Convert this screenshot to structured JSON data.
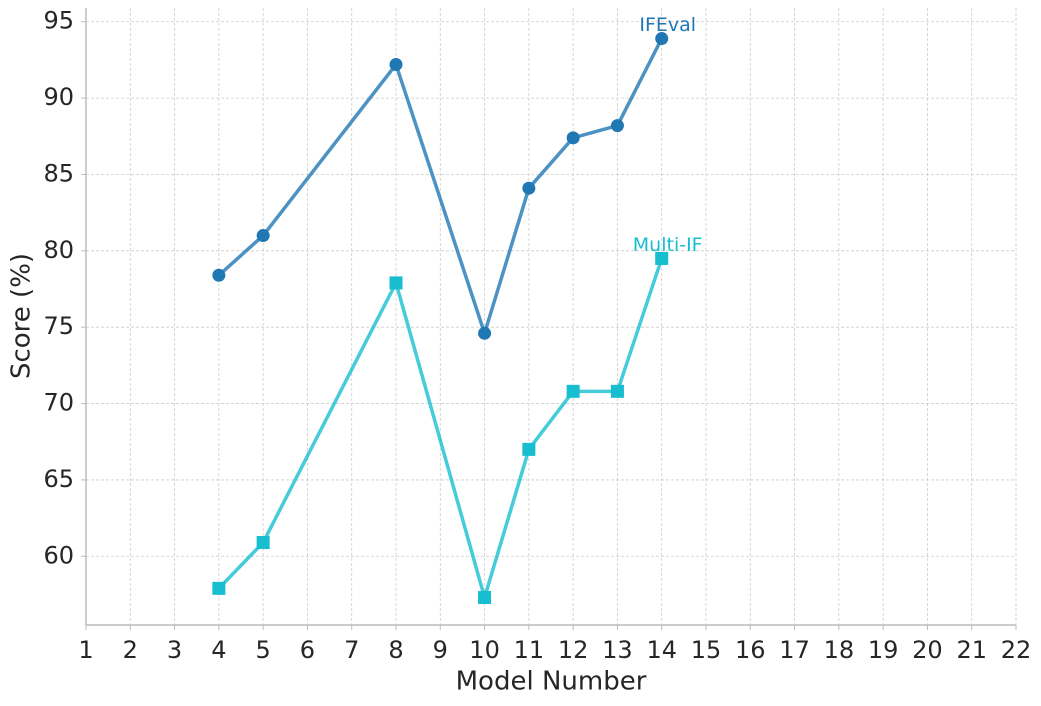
{
  "chart_data": {
    "type": "line",
    "x": [
      4,
      5,
      8,
      10,
      11,
      12,
      13,
      14
    ],
    "series": [
      {
        "name": "IFEval",
        "color": "#1f77b4",
        "marker": "circle",
        "values": [
          78.4,
          81.0,
          92.2,
          74.6,
          84.1,
          87.4,
          88.2,
          93.9
        ]
      },
      {
        "name": "Multi-IF",
        "color": "#17becf",
        "marker": "square",
        "values": [
          57.9,
          60.9,
          77.9,
          57.3,
          67.0,
          70.8,
          70.8,
          79.5
        ]
      }
    ],
    "xlabel": "Model Number",
    "ylabel": "Score (%)",
    "xlim": [
      1,
      22
    ],
    "xticks": [
      1,
      2,
      3,
      4,
      5,
      6,
      7,
      8,
      9,
      10,
      11,
      12,
      13,
      14,
      15,
      16,
      17,
      18,
      19,
      20,
      21,
      22
    ],
    "ylim": [
      55.5,
      95.9
    ],
    "yticks": [
      60,
      65,
      70,
      75,
      80,
      85,
      90,
      95
    ],
    "grid": true
  }
}
